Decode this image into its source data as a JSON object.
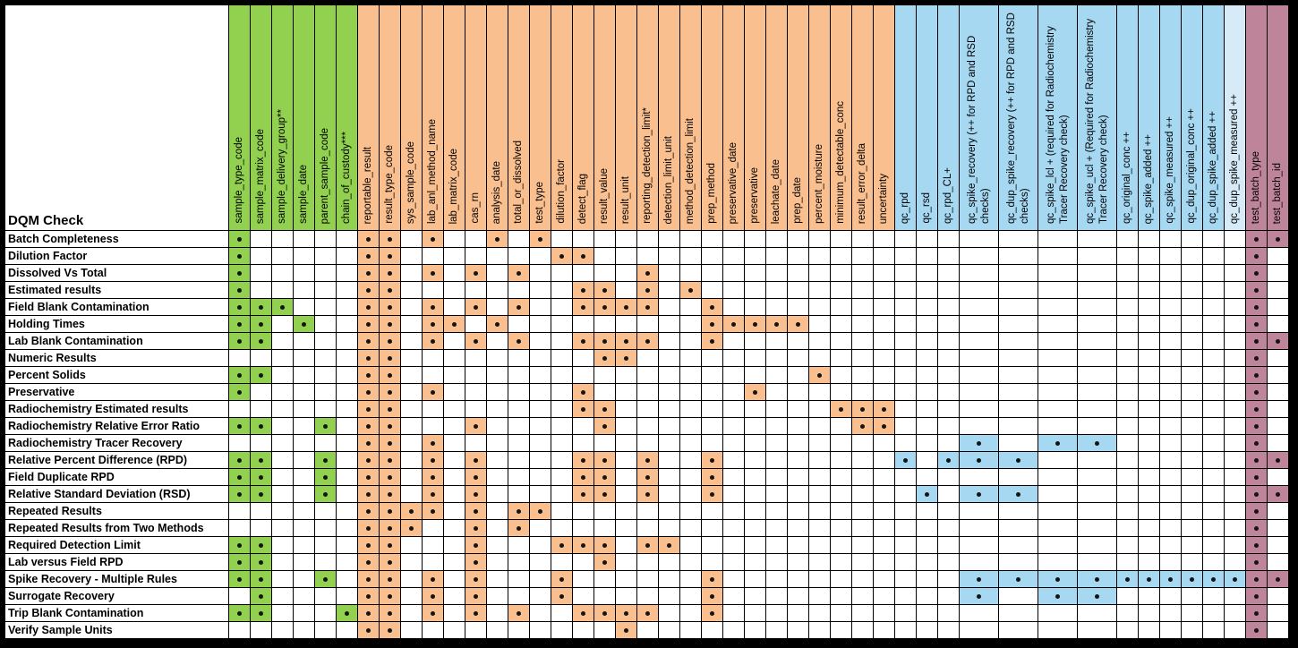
{
  "title": "DQM Check",
  "colors": {
    "green": "#92D050",
    "orange": "#FABF8F",
    "blue": "#A6D8F2",
    "lightblue": "#D6EAF8",
    "pink": "#BE8499",
    "dot": "#141414",
    "grid": "#000000",
    "frame": "#000000"
  },
  "columns": [
    {
      "label": "sample_type_code",
      "group": "green",
      "wide": false
    },
    {
      "label": "sample_matrix_code",
      "group": "green",
      "wide": false
    },
    {
      "label": "sample_delivery_group**",
      "group": "green",
      "wide": false
    },
    {
      "label": "sample_date",
      "group": "green",
      "wide": false
    },
    {
      "label": "parent_sample_code",
      "group": "green",
      "wide": false
    },
    {
      "label": "chain_of_custody***",
      "group": "green",
      "wide": false
    },
    {
      "label": "reportable_result",
      "group": "orange",
      "wide": false
    },
    {
      "label": "result_type_code",
      "group": "orange",
      "wide": false
    },
    {
      "label": "sys_sample_code",
      "group": "orange",
      "wide": false
    },
    {
      "label": "lab_anl_method_name",
      "group": "orange",
      "wide": false
    },
    {
      "label": "lab_matrix_code",
      "group": "orange",
      "wide": false
    },
    {
      "label": "cas_rn",
      "group": "orange",
      "wide": false
    },
    {
      "label": "analysis_date",
      "group": "orange",
      "wide": false
    },
    {
      "label": "total_or_dissolved",
      "group": "orange",
      "wide": false
    },
    {
      "label": "test_type",
      "group": "orange",
      "wide": false
    },
    {
      "label": "dilution_factor",
      "group": "orange",
      "wide": false
    },
    {
      "label": "detect_flag",
      "group": "orange",
      "wide": false
    },
    {
      "label": "result_value",
      "group": "orange",
      "wide": false
    },
    {
      "label": "result_unit",
      "group": "orange",
      "wide": false
    },
    {
      "label": "reporting_detection_limit*",
      "group": "orange",
      "wide": false
    },
    {
      "label": "detection_limit_unit",
      "group": "orange",
      "wide": false
    },
    {
      "label": "method_detection_limit",
      "group": "orange",
      "wide": false
    },
    {
      "label": "prep_method",
      "group": "orange",
      "wide": false
    },
    {
      "label": "preservative_date",
      "group": "orange",
      "wide": false
    },
    {
      "label": "preservative",
      "group": "orange",
      "wide": false
    },
    {
      "label": "leachate_date",
      "group": "orange",
      "wide": false
    },
    {
      "label": "prep_date",
      "group": "orange",
      "wide": false
    },
    {
      "label": "percent_moisture",
      "group": "orange",
      "wide": false
    },
    {
      "label": "minimum_detectable_conc",
      "group": "orange",
      "wide": false
    },
    {
      "label": "result_error_delta",
      "group": "orange",
      "wide": false
    },
    {
      "label": "uncertainty",
      "group": "orange",
      "wide": false
    },
    {
      "label": "qc_rpd",
      "group": "blue",
      "wide": false
    },
    {
      "label": "qc_rsd",
      "group": "blue",
      "wide": false
    },
    {
      "label": "qc_rpd_CL+",
      "group": "blue",
      "wide": false
    },
    {
      "label": "qc_spike_recovery (++ for RPD and RSD checks)",
      "group": "blue",
      "wide": true
    },
    {
      "label": "qc_dup_spike_recovery (++ for RPD and RSD checks)",
      "group": "blue",
      "wide": true
    },
    {
      "label": "qc_spike_lcl + (required for Radiochemistry Tracer Recovery check)",
      "group": "blue",
      "wide": true
    },
    {
      "label": "qc_spike_ucl + (Required for Radiochemistry Tracer Recovery check)",
      "group": "blue",
      "wide": true
    },
    {
      "label": "qc_original_conc ++",
      "group": "blue",
      "wide": false
    },
    {
      "label": "qc_spike_added ++",
      "group": "blue",
      "wide": false
    },
    {
      "label": "qc_spike_measured ++",
      "group": "blue",
      "wide": false
    },
    {
      "label": "qc_dup_original_conc ++",
      "group": "blue",
      "wide": false
    },
    {
      "label": "qc_dup_spike_added ++",
      "group": "blue",
      "wide": false
    },
    {
      "label": "qc_dup_spike_measured ++",
      "group": "lightblue",
      "wide": false
    },
    {
      "label": "test_batch_type",
      "group": "pink",
      "wide": false
    },
    {
      "label": "test_batch_id",
      "group": "pink",
      "wide": false
    }
  ],
  "rows": [
    {
      "label": "Batch Completeness",
      "dots": [
        0,
        6,
        7,
        9,
        12,
        14,
        44,
        45
      ]
    },
    {
      "label": "Dilution Factor",
      "dots": [
        0,
        6,
        7,
        15,
        16,
        44
      ]
    },
    {
      "label": "Dissolved Vs Total",
      "dots": [
        0,
        6,
        7,
        9,
        11,
        13,
        19,
        44
      ]
    },
    {
      "label": "Estimated results",
      "dots": [
        0,
        6,
        7,
        16,
        17,
        19,
        21,
        44
      ]
    },
    {
      "label": "Field Blank Contamination",
      "dots": [
        0,
        1,
        2,
        6,
        7,
        9,
        11,
        13,
        16,
        17,
        18,
        19,
        22,
        44
      ]
    },
    {
      "label": "Holding Times",
      "dots": [
        0,
        1,
        3,
        6,
        7,
        9,
        10,
        12,
        22,
        23,
        24,
        25,
        26,
        44
      ]
    },
    {
      "label": "Lab Blank Contamination",
      "dots": [
        0,
        1,
        6,
        7,
        9,
        11,
        13,
        16,
        17,
        18,
        19,
        22,
        44,
        45
      ]
    },
    {
      "label": "Numeric Results",
      "dots": [
        6,
        7,
        17,
        18,
        44
      ]
    },
    {
      "label": "Percent Solids",
      "dots": [
        0,
        1,
        6,
        7,
        27,
        44
      ]
    },
    {
      "label": "Preservative",
      "dots": [
        0,
        6,
        7,
        9,
        16,
        24,
        44
      ]
    },
    {
      "label": "Radiochemistry Estimated results",
      "dots": [
        6,
        7,
        16,
        17,
        28,
        29,
        30,
        44
      ]
    },
    {
      "label": "Radiochemistry Relative Error Ratio",
      "dots": [
        0,
        1,
        4,
        6,
        7,
        11,
        17,
        29,
        30,
        44
      ]
    },
    {
      "label": "Radiochemistry Tracer Recovery",
      "dots": [
        6,
        7,
        9,
        34,
        36,
        37,
        44
      ]
    },
    {
      "label": "Relative Percent Difference (RPD)",
      "dots": [
        0,
        1,
        4,
        6,
        7,
        9,
        11,
        16,
        17,
        19,
        22,
        31,
        33,
        34,
        35,
        44,
        45
      ]
    },
    {
      "label": "Field Duplicate RPD",
      "dots": [
        0,
        1,
        4,
        6,
        7,
        9,
        11,
        16,
        17,
        19,
        22,
        44
      ]
    },
    {
      "label": "Relative Standard Deviation (RSD)",
      "dots": [
        0,
        1,
        4,
        6,
        7,
        9,
        11,
        16,
        17,
        19,
        22,
        32,
        34,
        35,
        44,
        45
      ]
    },
    {
      "label": "Repeated Results",
      "dots": [
        6,
        7,
        8,
        9,
        11,
        13,
        14,
        44
      ]
    },
    {
      "label": "Repeated Results from Two Methods",
      "dots": [
        6,
        7,
        8,
        11,
        13,
        44
      ]
    },
    {
      "label": "Required Detection Limit",
      "dots": [
        0,
        1,
        6,
        7,
        11,
        15,
        16,
        17,
        19,
        20,
        44
      ]
    },
    {
      "label": "Lab versus Field RPD",
      "dots": [
        0,
        1,
        6,
        7,
        11,
        17,
        44
      ]
    },
    {
      "label": "Spike Recovery - Multiple Rules",
      "dots": [
        0,
        1,
        4,
        6,
        7,
        9,
        11,
        15,
        22,
        34,
        35,
        36,
        37,
        38,
        39,
        40,
        41,
        42,
        43,
        44,
        45
      ]
    },
    {
      "label": "Surrogate Recovery",
      "dots": [
        1,
        6,
        7,
        9,
        11,
        15,
        22,
        34,
        36,
        37,
        44
      ]
    },
    {
      "label": "Trip Blank Contamination",
      "dots": [
        0,
        1,
        5,
        6,
        7,
        9,
        11,
        13,
        16,
        17,
        18,
        19,
        22,
        44
      ]
    },
    {
      "label": "Verify Sample Units",
      "dots": [
        6,
        7,
        18,
        44
      ]
    }
  ]
}
